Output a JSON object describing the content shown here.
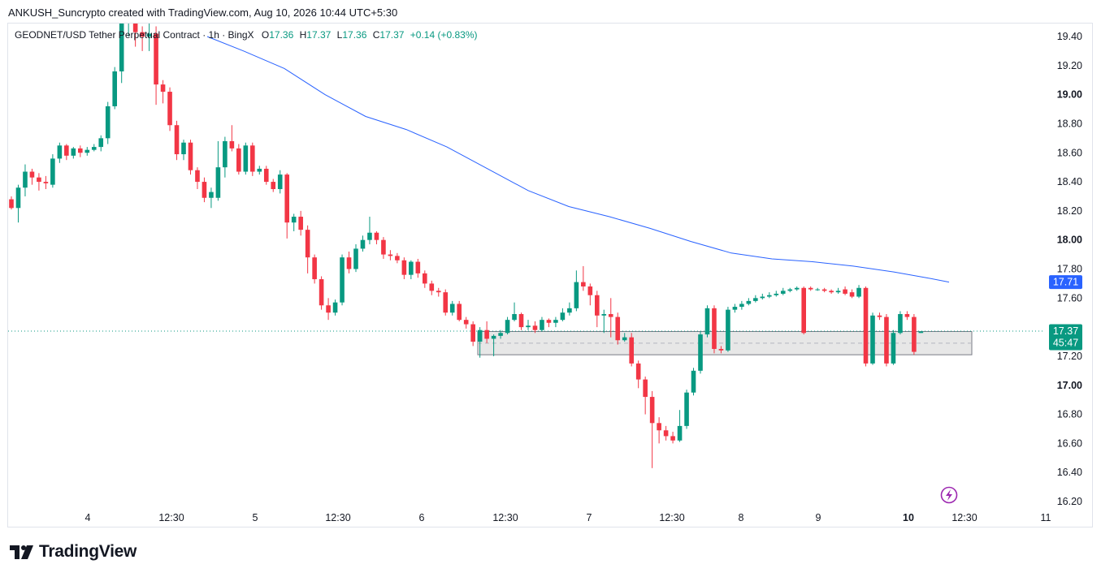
{
  "caption": "ANKUSH_Suncrypto created with TradingView.com, Aug 10, 2026 10:44 UTC+5:30",
  "brand": {
    "name": "TradingView",
    "logo_icon": "tradingview-logo-icon"
  },
  "legend": {
    "symbol": "GEODNET/USD Tether Perpetual Contract · 1h · BingX",
    "o_label": "O",
    "o": "17.36",
    "h_label": "H",
    "h": "17.37",
    "l_label": "L",
    "l": "17.36",
    "c_label": "C",
    "c": "17.37",
    "change": "+0.14 (+0.83%)"
  },
  "colors": {
    "up": "#089981",
    "down": "#f23645",
    "ma": "#2962ff",
    "zone_fill": "#e7e7e7",
    "zone_border": "#787b86"
  },
  "chart_data": {
    "type": "candlestick",
    "y_axis": {
      "ticks": [
        "19.40",
        "19.20",
        "19.00",
        "18.80",
        "18.60",
        "18.40",
        "18.20",
        "18.00",
        "17.80",
        "17.60",
        "17.20",
        "17.00",
        "16.80",
        "16.60",
        "16.40",
        "16.20"
      ],
      "bold_ticks": [
        "19.00",
        "18.00",
        "17.00"
      ],
      "range": [
        16.15,
        19.55
      ]
    },
    "x_axis": {
      "labels": [
        "4",
        "12:30",
        "5",
        "12:30",
        "6",
        "12:30",
        "7",
        "12:30",
        "8",
        "9",
        "10",
        "12:30",
        "11"
      ],
      "bold_labels": [
        "10"
      ]
    },
    "price_tags": [
      {
        "label": "17.71",
        "value": 17.71,
        "color": "#2962ff"
      },
      {
        "label": "17.37",
        "sub": "45:47",
        "value": 17.37,
        "color": "#089981"
      }
    ],
    "last_price": 17.37,
    "zone": {
      "top": 17.37,
      "bottom": 17.21,
      "mid": 17.29,
      "x_start": 588,
      "x_end": 1196
    },
    "candles": [
      [
        18.28,
        18.22,
        18.3,
        18.21
      ],
      [
        18.22,
        18.36,
        18.38,
        18.12
      ],
      [
        18.36,
        18.47,
        18.52,
        18.3
      ],
      [
        18.47,
        18.43,
        18.49,
        18.38
      ],
      [
        18.43,
        18.4,
        18.46,
        18.34
      ],
      [
        18.4,
        18.39,
        18.44,
        18.35
      ],
      [
        18.38,
        18.56,
        18.59,
        18.36
      ],
      [
        18.56,
        18.65,
        18.67,
        18.53
      ],
      [
        18.65,
        18.58,
        18.66,
        18.55
      ],
      [
        18.58,
        18.63,
        18.64,
        18.56
      ],
      [
        18.63,
        18.6,
        18.65,
        18.57
      ],
      [
        18.6,
        18.62,
        18.64,
        18.58
      ],
      [
        18.62,
        18.64,
        18.66,
        18.61
      ],
      [
        18.64,
        18.7,
        18.72,
        18.61
      ],
      [
        18.7,
        18.92,
        18.95,
        18.66
      ],
      [
        18.92,
        19.16,
        19.19,
        18.9
      ],
      [
        19.16,
        19.49,
        19.62,
        19.08
      ],
      [
        19.49,
        19.55,
        19.65,
        19.4
      ],
      [
        19.55,
        19.43,
        19.6,
        19.33
      ],
      [
        19.43,
        19.4,
        19.47,
        19.3
      ],
      [
        19.4,
        19.42,
        19.58,
        19.3
      ],
      [
        19.42,
        19.07,
        19.47,
        18.93
      ],
      [
        19.07,
        19.02,
        19.1,
        18.94
      ],
      [
        19.02,
        18.79,
        19.05,
        18.75
      ],
      [
        18.79,
        18.59,
        18.82,
        18.55
      ],
      [
        18.59,
        18.67,
        18.69,
        18.55
      ],
      [
        18.67,
        18.48,
        18.69,
        18.45
      ],
      [
        18.48,
        18.4,
        18.5,
        18.35
      ],
      [
        18.4,
        18.29,
        18.43,
        18.26
      ],
      [
        18.29,
        18.33,
        18.36,
        18.22
      ],
      [
        18.29,
        18.5,
        18.68,
        18.27
      ],
      [
        18.5,
        18.68,
        18.71,
        18.43
      ],
      [
        18.68,
        18.63,
        18.79,
        18.61
      ],
      [
        18.63,
        18.47,
        18.66,
        18.45
      ],
      [
        18.47,
        18.65,
        18.67,
        18.45
      ],
      [
        18.65,
        18.47,
        18.67,
        18.44
      ],
      [
        18.47,
        18.49,
        18.51,
        18.45
      ],
      [
        18.49,
        18.4,
        18.51,
        18.38
      ],
      [
        18.4,
        18.35,
        18.42,
        18.33
      ],
      [
        18.35,
        18.45,
        18.48,
        18.32
      ],
      [
        18.45,
        18.12,
        18.46,
        18.01
      ],
      [
        18.12,
        18.16,
        18.18,
        18.06
      ],
      [
        18.16,
        18.07,
        18.2,
        18.03
      ],
      [
        18.07,
        17.88,
        18.1,
        17.77
      ],
      [
        17.88,
        17.73,
        17.9,
        17.7
      ],
      [
        17.73,
        17.55,
        17.75,
        17.52
      ],
      [
        17.55,
        17.5,
        17.6,
        17.45
      ],
      [
        17.5,
        17.57,
        17.59,
        17.48
      ],
      [
        17.57,
        17.88,
        17.9,
        17.55
      ],
      [
        17.88,
        17.8,
        17.92,
        17.77
      ],
      [
        17.8,
        17.94,
        17.97,
        17.78
      ],
      [
        17.94,
        18.0,
        18.03,
        17.92
      ],
      [
        18.0,
        18.05,
        18.16,
        17.97
      ],
      [
        18.05,
        18.0,
        18.06,
        17.97
      ],
      [
        18.0,
        17.9,
        18.02,
        17.87
      ],
      [
        17.9,
        17.89,
        17.93,
        17.86
      ],
      [
        17.89,
        17.86,
        17.91,
        17.84
      ],
      [
        17.86,
        17.76,
        17.88,
        17.73
      ],
      [
        17.76,
        17.85,
        17.86,
        17.73
      ],
      [
        17.85,
        17.77,
        17.87,
        17.74
      ],
      [
        17.77,
        17.7,
        17.79,
        17.67
      ],
      [
        17.7,
        17.65,
        17.72,
        17.62
      ],
      [
        17.65,
        17.64,
        17.67,
        17.61
      ],
      [
        17.64,
        17.5,
        17.66,
        17.48
      ],
      [
        17.5,
        17.56,
        17.58,
        17.48
      ],
      [
        17.56,
        17.45,
        17.58,
        17.44
      ],
      [
        17.45,
        17.42,
        17.47,
        17.39
      ],
      [
        17.42,
        17.3,
        17.44,
        17.27
      ],
      [
        17.3,
        17.38,
        17.4,
        17.19
      ],
      [
        17.38,
        17.32,
        17.44,
        17.29
      ],
      [
        17.32,
        17.34,
        17.35,
        17.2
      ],
      [
        17.34,
        17.36,
        17.38,
        17.32
      ],
      [
        17.36,
        17.45,
        17.47,
        17.35
      ],
      [
        17.45,
        17.49,
        17.57,
        17.44
      ],
      [
        17.49,
        17.4,
        17.5,
        17.38
      ],
      [
        17.4,
        17.41,
        17.45,
        17.38
      ],
      [
        17.41,
        17.38,
        17.44,
        17.36
      ],
      [
        17.38,
        17.45,
        17.47,
        17.37
      ],
      [
        17.45,
        17.43,
        17.46,
        17.4
      ],
      [
        17.43,
        17.45,
        17.47,
        17.4
      ],
      [
        17.45,
        17.5,
        17.53,
        17.44
      ],
      [
        17.5,
        17.53,
        17.57,
        17.48
      ],
      [
        17.53,
        17.71,
        17.79,
        17.51
      ],
      [
        17.71,
        17.68,
        17.82,
        17.65
      ],
      [
        17.68,
        17.62,
        17.7,
        17.55
      ],
      [
        17.62,
        17.48,
        17.65,
        17.4
      ],
      [
        17.48,
        17.49,
        17.52,
        17.36
      ],
      [
        17.49,
        17.47,
        17.6,
        17.33
      ],
      [
        17.47,
        17.31,
        17.5,
        17.28
      ],
      [
        17.31,
        17.33,
        17.36,
        17.3
      ],
      [
        17.33,
        17.15,
        17.36,
        17.13
      ],
      [
        17.15,
        17.04,
        17.17,
        16.98
      ],
      [
        17.04,
        16.92,
        17.06,
        16.8
      ],
      [
        16.92,
        16.74,
        16.96,
        16.43
      ],
      [
        16.74,
        16.69,
        16.78,
        16.6
      ],
      [
        16.69,
        16.65,
        16.72,
        16.62
      ],
      [
        16.65,
        16.62,
        16.68,
        16.6
      ],
      [
        16.62,
        16.72,
        16.83,
        16.61
      ],
      [
        16.72,
        16.95,
        16.97,
        16.7
      ],
      [
        16.95,
        17.1,
        17.12,
        16.93
      ],
      [
        17.1,
        17.35,
        17.37,
        17.08
      ],
      [
        17.35,
        17.53,
        17.55,
        17.33
      ],
      [
        17.53,
        17.25,
        17.55,
        17.22
      ],
      [
        17.25,
        17.24,
        17.27,
        17.22
      ],
      [
        17.24,
        17.52,
        17.54,
        17.23
      ],
      [
        17.52,
        17.54,
        17.56,
        17.5
      ],
      [
        17.54,
        17.56,
        17.58,
        17.52
      ],
      [
        17.56,
        17.58,
        17.6,
        17.55
      ],
      [
        17.58,
        17.6,
        17.62,
        17.57
      ],
      [
        17.6,
        17.61,
        17.63,
        17.59
      ],
      [
        17.61,
        17.62,
        17.64,
        17.6
      ],
      [
        17.62,
        17.63,
        17.65,
        17.61
      ],
      [
        17.63,
        17.65,
        17.67,
        17.62
      ],
      [
        17.65,
        17.66,
        17.67,
        17.64
      ],
      [
        17.66,
        17.67,
        17.68,
        17.65
      ],
      [
        17.67,
        17.36,
        17.68,
        17.35
      ],
      [
        17.67,
        17.66,
        17.68,
        17.65
      ],
      [
        17.66,
        17.66,
        17.67,
        17.65
      ],
      [
        17.66,
        17.65,
        17.67,
        17.64
      ],
      [
        17.65,
        17.64,
        17.66,
        17.63
      ],
      [
        17.64,
        17.65,
        17.67,
        17.63
      ],
      [
        17.66,
        17.63,
        17.68,
        17.62
      ],
      [
        17.64,
        17.61,
        17.66,
        17.6
      ],
      [
        17.61,
        17.67,
        17.69,
        17.6
      ],
      [
        17.67,
        17.15,
        17.68,
        17.13
      ],
      [
        17.15,
        17.48,
        17.5,
        17.14
      ],
      [
        17.48,
        17.47,
        17.5,
        17.45
      ],
      [
        17.47,
        17.15,
        17.49,
        17.13
      ],
      [
        17.15,
        17.36,
        17.38,
        17.14
      ],
      [
        17.36,
        17.49,
        17.51,
        17.35
      ],
      [
        17.49,
        17.47,
        17.51,
        17.45
      ],
      [
        17.47,
        17.23,
        17.49,
        17.21
      ],
      [
        17.36,
        17.37,
        17.37,
        17.36
      ]
    ],
    "ma": [
      [
        255,
        19.4
      ],
      [
        300,
        19.3
      ],
      [
        350,
        19.18
      ],
      [
        400,
        19.0
      ],
      [
        450,
        18.85
      ],
      [
        500,
        18.76
      ],
      [
        550,
        18.64
      ],
      [
        600,
        18.49
      ],
      [
        650,
        18.34
      ],
      [
        700,
        18.23
      ],
      [
        750,
        18.16
      ],
      [
        800,
        18.08
      ],
      [
        850,
        17.99
      ],
      [
        900,
        17.91
      ],
      [
        950,
        17.87
      ],
      [
        1000,
        17.85
      ],
      [
        1050,
        17.82
      ],
      [
        1100,
        17.78
      ],
      [
        1140,
        17.74
      ],
      [
        1168,
        17.71
      ]
    ]
  }
}
